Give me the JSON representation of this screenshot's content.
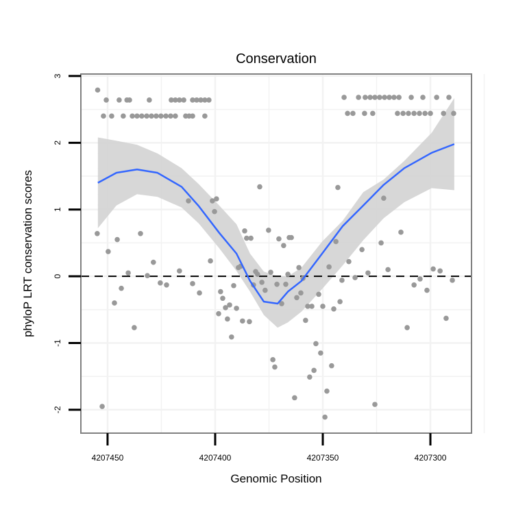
{
  "chart_data": {
    "type": "scatter",
    "title": "Conservation",
    "xlabel": "Genomic Position",
    "ylabel": "phyloP LRT conservation scores",
    "xlim": [
      4207462.4,
      4207280.9
    ],
    "x_reversed": true,
    "ylim": [
      -2.35,
      3.03
    ],
    "xticks": [
      4207450,
      4207400,
      4207350,
      4207300
    ],
    "xtick_labels": [
      "4207450",
      "4207400",
      "4207350",
      "4207300"
    ],
    "yticks": [
      3,
      2,
      1,
      0,
      -1,
      -2
    ],
    "ytick_labels": [
      "3",
      "2",
      "1",
      "0",
      "-1",
      "-2"
    ],
    "grid": true,
    "reference_line": {
      "y": 0,
      "style": "dashed"
    },
    "colors": {
      "points": "#999999",
      "smooth": "#3366ff",
      "ribbon": "#d3d3d3",
      "border": "#808080"
    },
    "points": [
      [
        4207454.6,
        2.79
      ],
      [
        4207450.6,
        2.64
      ],
      [
        4207444.6,
        2.64
      ],
      [
        4207441.0,
        2.64
      ],
      [
        4207439.8,
        2.64
      ],
      [
        4207430.6,
        2.64
      ],
      [
        4207420.4,
        2.64
      ],
      [
        4207418.5,
        2.64
      ],
      [
        4207416.6,
        2.64
      ],
      [
        4207414.6,
        2.64
      ],
      [
        4207410.5,
        2.64
      ],
      [
        4207408.6,
        2.64
      ],
      [
        4207406.7,
        2.64
      ],
      [
        4207404.8,
        2.64
      ],
      [
        4207402.9,
        2.64
      ],
      [
        4207451.9,
        2.4
      ],
      [
        4207448.1,
        2.4
      ],
      [
        4207442.7,
        2.4
      ],
      [
        4207438.5,
        2.4
      ],
      [
        4207436.3,
        2.4
      ],
      [
        4207434.1,
        2.4
      ],
      [
        4207431.8,
        2.4
      ],
      [
        4207429.6,
        2.4
      ],
      [
        4207427.4,
        2.4
      ],
      [
        4207425.2,
        2.4
      ],
      [
        4207422.9,
        2.4
      ],
      [
        4207420.7,
        2.4
      ],
      [
        4207418.5,
        2.4
      ],
      [
        4207413.7,
        2.4
      ],
      [
        4207412.1,
        2.4
      ],
      [
        4207410.5,
        2.4
      ],
      [
        4207404.8,
        2.4
      ],
      [
        4207340.1,
        2.68
      ],
      [
        4207333.4,
        2.68
      ],
      [
        4207330.3,
        2.68
      ],
      [
        4207328.0,
        2.68
      ],
      [
        4207325.8,
        2.68
      ],
      [
        4207323.6,
        2.68
      ],
      [
        4207321.3,
        2.68
      ],
      [
        4207319.1,
        2.68
      ],
      [
        4207316.9,
        2.68
      ],
      [
        4207314.6,
        2.68
      ],
      [
        4207308.9,
        2.68
      ],
      [
        4207303.5,
        2.68
      ],
      [
        4207297.1,
        2.68
      ],
      [
        4207291.4,
        2.68
      ],
      [
        4207338.5,
        2.44
      ],
      [
        4207336.0,
        2.44
      ],
      [
        4207330.6,
        2.44
      ],
      [
        4207326.8,
        2.44
      ],
      [
        4207315.3,
        2.44
      ],
      [
        4207312.7,
        2.44
      ],
      [
        4207310.2,
        2.44
      ],
      [
        4207307.6,
        2.44
      ],
      [
        4207305.1,
        2.44
      ],
      [
        4207302.5,
        2.44
      ],
      [
        4207300.0,
        2.44
      ],
      [
        4207293.9,
        2.44
      ],
      [
        4207289.2,
        2.44
      ],
      [
        4207454.8,
        0.64
      ],
      [
        4207445.5,
        0.55
      ],
      [
        4207449.7,
        0.37
      ],
      [
        4207434.7,
        0.64
      ],
      [
        4207440.4,
        0.05
      ],
      [
        4207443.6,
        -0.18
      ],
      [
        4207446.8,
        -0.4
      ],
      [
        4207437.6,
        -0.77
      ],
      [
        4207428.7,
        0.21
      ],
      [
        4207431.5,
        0.01
      ],
      [
        4207425.5,
        -0.1
      ],
      [
        4207422.6,
        -0.13
      ],
      [
        4207416.6,
        0.08
      ],
      [
        4207410.5,
        -0.11
      ],
      [
        4207407.3,
        -0.25
      ],
      [
        4207402.2,
        0.23
      ],
      [
        4207412.4,
        1.13
      ],
      [
        4207401.3,
        1.13
      ],
      [
        4207399.4,
        1.16
      ],
      [
        4207400.3,
        0.97
      ],
      [
        4207379.3,
        1.34
      ],
      [
        4207386.3,
        0.68
      ],
      [
        4207385.4,
        0.57
      ],
      [
        4207383.4,
        0.57
      ],
      [
        4207375.2,
        0.69
      ],
      [
        4207370.4,
        0.56
      ],
      [
        4207389.2,
        0.13
      ],
      [
        4207388.2,
        0.15
      ],
      [
        4207381.2,
        0.07
      ],
      [
        4207380.3,
        0.03
      ],
      [
        4207374.2,
        0.06
      ],
      [
        4207391.4,
        -0.14
      ],
      [
        4207382.2,
        -0.13
      ],
      [
        4207378.3,
        -0.09
      ],
      [
        4207376.8,
        -0.21
      ],
      [
        4207371.3,
        -0.12
      ],
      [
        4207397.5,
        -0.23
      ],
      [
        4207396.5,
        -0.33
      ],
      [
        4207395.2,
        -0.47
      ],
      [
        4207393.3,
        -0.43
      ],
      [
        4207390.1,
        -0.48
      ],
      [
        4207398.4,
        -0.56
      ],
      [
        4207394.3,
        -0.64
      ],
      [
        4207387.3,
        -0.67
      ],
      [
        4207384.1,
        -0.68
      ],
      [
        4207392.4,
        -0.91
      ],
      [
        4207452.5,
        -1.95
      ],
      [
        4207373.2,
        -1.25
      ],
      [
        4207372.3,
        -1.36
      ],
      [
        4207343.0,
        1.33
      ],
      [
        4207321.7,
        1.17
      ],
      [
        4207313.7,
        0.66
      ],
      [
        4207322.9,
        0.5
      ],
      [
        4207331.8,
        0.4
      ],
      [
        4207343.9,
        0.52
      ],
      [
        4207368.2,
        0.46
      ],
      [
        4207365.6,
        0.58
      ],
      [
        4207364.6,
        0.58
      ],
      [
        4207361.1,
        0.13
      ],
      [
        4207366.2,
        0.03
      ],
      [
        4207359.2,
        -0.03
      ],
      [
        4207347.1,
        0.14
      ],
      [
        4207337.9,
        0.22
      ],
      [
        4207341.1,
        -0.06
      ],
      [
        4207335.0,
        -0.02
      ],
      [
        4207329.0,
        0.05
      ],
      [
        4207319.7,
        0.1
      ],
      [
        4207298.7,
        0.11
      ],
      [
        4207295.5,
        0.08
      ],
      [
        4207304.8,
        -0.04
      ],
      [
        4207307.6,
        -0.13
      ],
      [
        4207301.6,
        -0.21
      ],
      [
        4207289.8,
        -0.06
      ],
      [
        4207367.2,
        -0.12
      ],
      [
        4207369.1,
        -0.41
      ],
      [
        4207362.1,
        -0.32
      ],
      [
        4207360.2,
        -0.25
      ],
      [
        4207351.9,
        -0.27
      ],
      [
        4207357.0,
        -0.45
      ],
      [
        4207355.1,
        -0.45
      ],
      [
        4207350.0,
        -0.45
      ],
      [
        4207344.9,
        -0.49
      ],
      [
        4207342.0,
        -0.38
      ],
      [
        4207358.0,
        -0.66
      ],
      [
        4207353.2,
        -1.01
      ],
      [
        4207351.0,
        -1.15
      ],
      [
        4207345.9,
        -1.34
      ],
      [
        4207354.1,
        -1.41
      ],
      [
        4207356.1,
        -1.51
      ],
      [
        4207348.1,
        -1.72
      ],
      [
        4207363.1,
        -1.82
      ],
      [
        4207349.0,
        -2.11
      ],
      [
        4207325.8,
        -1.92
      ],
      [
        4207310.8,
        -0.77
      ],
      [
        4207292.7,
        -0.63
      ]
    ],
    "smooth": {
      "x": [
        4207454.5,
        4207445.9,
        4207436.3,
        4207426.8,
        4207415.6,
        4207407.6,
        4207398.1,
        4207390.1,
        4207383.8,
        4207377.4,
        4207371.0,
        4207366.2,
        4207359.9,
        4207350.3,
        4207340.8,
        4207331.2,
        4207321.7,
        4207312.1,
        4207299.4,
        4207288.9
      ],
      "y": [
        1.4,
        1.55,
        1.6,
        1.55,
        1.34,
        1.05,
        0.65,
        0.34,
        -0.07,
        -0.38,
        -0.41,
        -0.23,
        -0.07,
        0.34,
        0.75,
        1.06,
        1.37,
        1.62,
        1.85,
        1.98
      ],
      "upper": [
        2.08,
        2.03,
        1.97,
        1.84,
        1.62,
        1.38,
        1.06,
        0.78,
        0.34,
        0.07,
        0.0,
        0.0,
        0.13,
        0.52,
        0.83,
        1.26,
        1.45,
        1.73,
        2.15,
        2.67
      ],
      "lower": [
        0.72,
        1.06,
        1.23,
        1.19,
        1.03,
        0.79,
        0.42,
        0.08,
        -0.23,
        -0.58,
        -0.77,
        -0.69,
        -0.53,
        -0.19,
        0.16,
        0.54,
        0.87,
        1.11,
        1.32,
        1.29
      ]
    }
  }
}
